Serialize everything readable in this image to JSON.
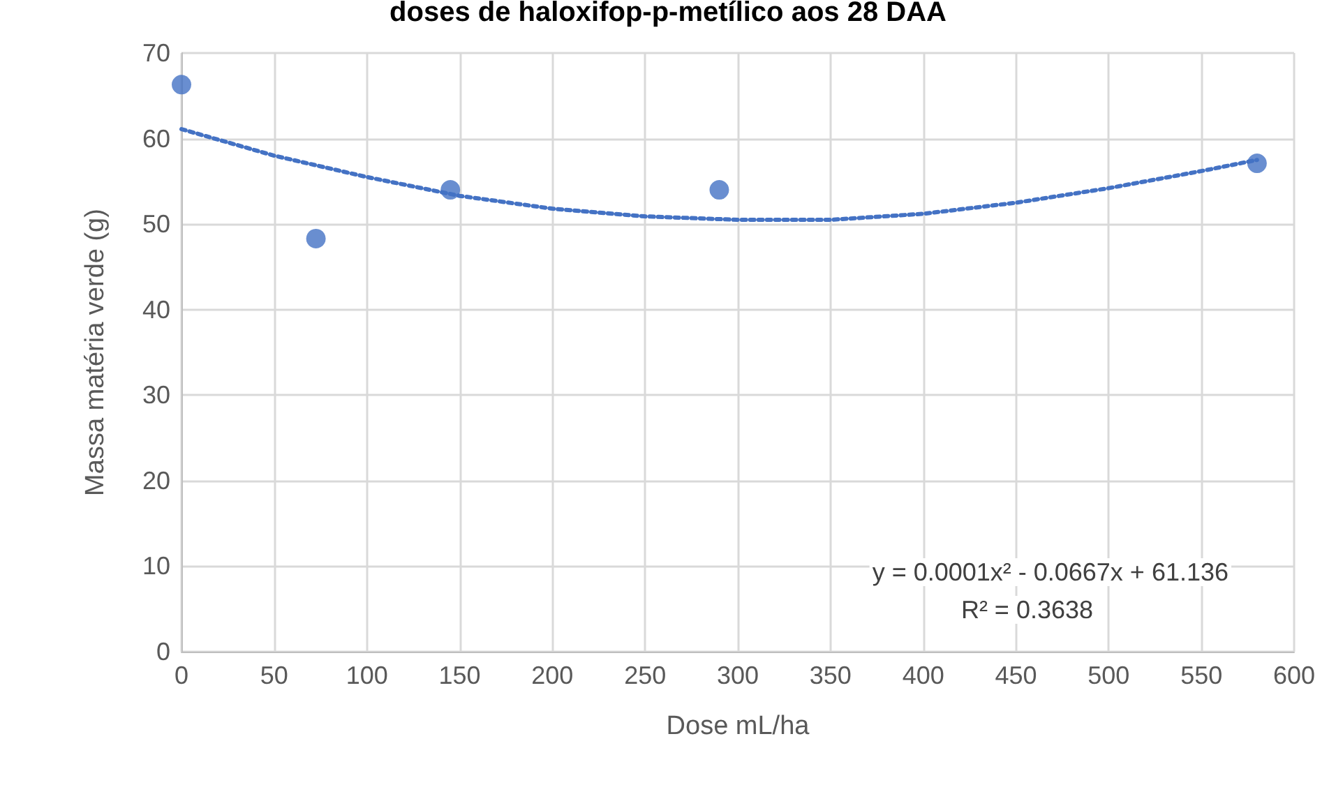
{
  "chart_data": {
    "type": "scatter",
    "title": "doses de haloxifop-p-metílico aos 28 DAA",
    "xlabel": "Dose mL/ha",
    "ylabel": "Massa matéria verde (g)",
    "series": [
      {
        "type": "scatter",
        "color": "#4472c4",
        "marker": "circle",
        "x": [
          0,
          72.5,
          145,
          290,
          580
        ],
        "values": [
          66.3,
          48.3,
          54.0,
          54.0,
          57.1
        ]
      },
      {
        "type": "line",
        "color": "#4472c4",
        "marker": "none",
        "line_style": "dotted",
        "x": [
          0,
          50,
          100,
          150,
          200,
          250,
          300,
          350,
          400,
          450,
          500,
          550,
          580
        ],
        "values": [
          61.1,
          58.0,
          55.5,
          53.3,
          51.8,
          50.9,
          50.5,
          50.5,
          51.2,
          52.5,
          54.2,
          56.2,
          57.5
        ]
      }
    ],
    "annotations": [
      "y = 0.0001x² - 0.0667x + 61.136",
      "R² = 0.3638"
    ],
    "xlim": [
      0,
      600
    ],
    "xticks": [
      0,
      50,
      100,
      150,
      200,
      250,
      300,
      350,
      400,
      450,
      500,
      550,
      600
    ],
    "ylim": [
      0,
      70
    ],
    "yticks": [
      0,
      10,
      20,
      30,
      40,
      50,
      60,
      70
    ],
    "grid": true
  }
}
